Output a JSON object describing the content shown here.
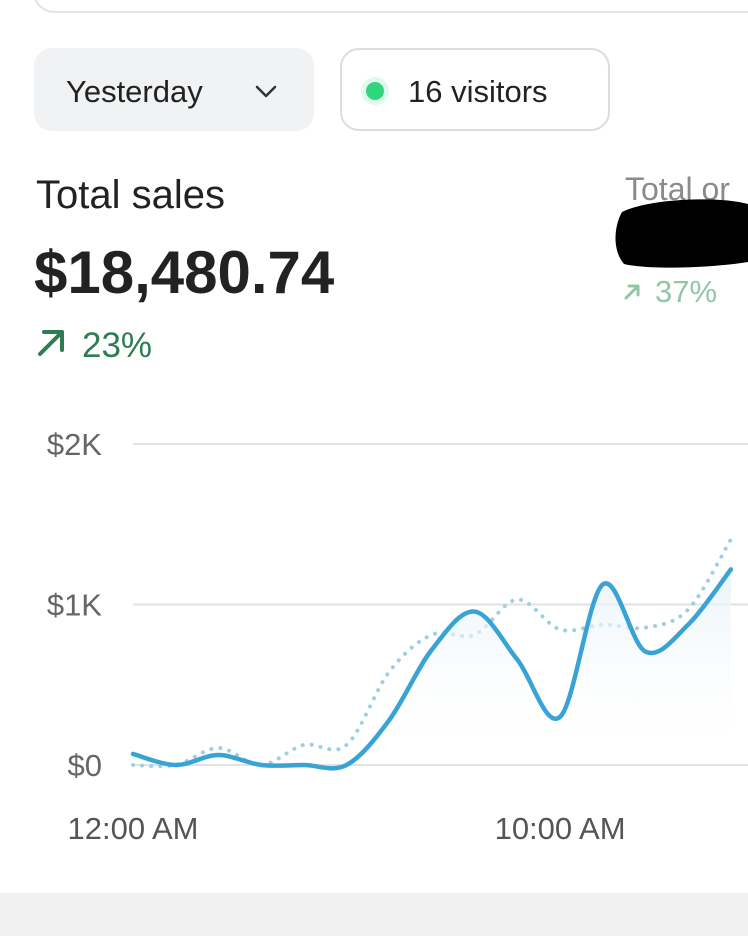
{
  "period_button": "Yesterday",
  "visitors_badge": "16 visitors",
  "total_sales": {
    "label": "Total sales",
    "amount": "$18,480.74",
    "change": "23%"
  },
  "total_orders": {
    "label": "Total or",
    "change": "37%"
  },
  "chart_data": {
    "type": "line",
    "x": [
      0,
      1,
      2,
      3,
      4,
      5,
      6,
      7,
      8,
      9,
      10,
      11,
      12,
      13,
      14
    ],
    "series": [
      {
        "color": "#3aa3d6",
        "style": "solid",
        "values": [
          69,
          0,
          62,
          0,
          0,
          0,
          280,
          720,
          956,
          656,
          300,
          1125,
          706,
          875,
          1219
        ]
      },
      {
        "color": "#9fd0e2",
        "style": "dotted",
        "values": [
          0,
          0,
          106,
          0,
          125,
          125,
          581,
          812,
          812,
          1031,
          844,
          875,
          856,
          969,
          1406
        ]
      }
    ],
    "xlim": [
      0,
      14.4
    ],
    "xticks": [
      {
        "value": 0,
        "label": "12:00 AM"
      },
      {
        "value": 10,
        "label": "10:00 AM"
      }
    ],
    "ylim": [
      0,
      2000
    ],
    "yticks": [
      {
        "value": 0,
        "label": "$0"
      },
      {
        "value": 1000,
        "label": "$1K"
      },
      {
        "value": 2000,
        "label": "$2K"
      }
    ],
    "grid": true
  }
}
